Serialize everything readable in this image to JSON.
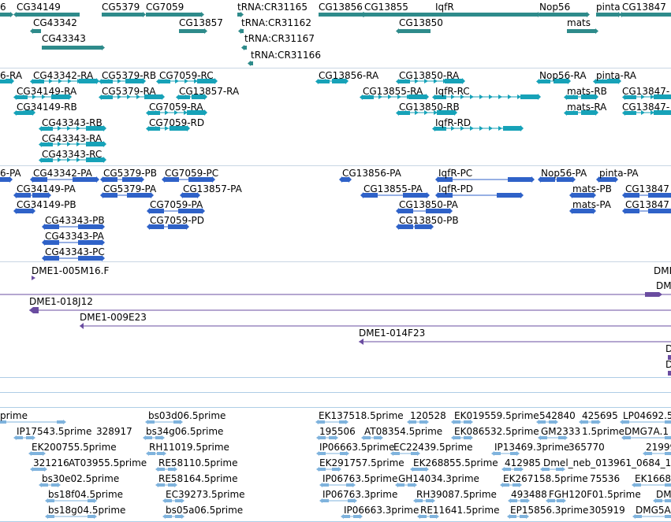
{
  "colors": {
    "gene": "#2e8b8b",
    "mrna": "#17a2b8",
    "cds": "#2f62c8",
    "clone": "#6a4ca0",
    "est": "#7fb3dd",
    "separator": "#aecde6"
  },
  "gene_track": {
    "labels": [
      "6",
      "CG34149",
      "CG5379",
      "CG7059",
      "tRNA:CR31165",
      "CG13856",
      "CG13855",
      "IqfR",
      "Nop56",
      "pinta",
      "CG13847",
      "CG43342",
      "CG13857",
      "tRNA:CR31162",
      "CG13850",
      "mats",
      "CG43343",
      "tRNA:CR31167",
      "tRNA:CR31166"
    ]
  },
  "mrna_track": {
    "labels": [
      "6-RA",
      "CG43342-RA",
      "CG5379-RB",
      "CG7059-RC",
      "CG13856-RA",
      "CG13850-RA",
      "Nop56-RA",
      "pinta-RA",
      "CG34149-RA",
      "CG5379-RA",
      "CG13857-RA",
      "CG13855-RA",
      "IqfR-RC",
      "mats-RB",
      "CG13847-",
      "CG34149-RB",
      "CG7059-RA",
      "CG13850-RB",
      "mats-RA",
      "CG13847-",
      "CG7059-RD",
      "IqfR-RD",
      "CG43343-RB",
      "CG43343-RA",
      "CG43343-RC"
    ]
  },
  "cds_track": {
    "labels": [
      "6-PA",
      "CG43342-PA",
      "CG5379-PB",
      "CG7059-PC",
      "CG13856-PA",
      "IqfR-PC",
      "Nop56-PA",
      "pinta-PA",
      "CG34149-PA",
      "CG5379-PA",
      "CG13857-PA",
      "CG13855-PA",
      "IqfR-PD",
      "mats-PB",
      "CG13847",
      "CG34149-PB",
      "CG7059-PA",
      "CG13850-PA",
      "mats-PA",
      "CG13847",
      "CG7059-PD",
      "CG13850-PB",
      "CG43343-PB",
      "CG43343-PA",
      "CG43343-PC"
    ]
  },
  "clone_track": {
    "labels": [
      "DME1-005M16.F",
      "DMI",
      "DM",
      "DME1-018J12",
      "DME1-009E23",
      "DME1-014F23",
      "D",
      "D"
    ]
  },
  "est_track": {
    "labels": [
      "prime",
      "bs03d06.5prime",
      "EK137518.5prime",
      "120528",
      "EK019559.5prime",
      "542840",
      "425695",
      "LP04692.5",
      "IP17543.5prime",
      "328917",
      "bs34g06.5prime",
      "195506",
      "AT08354.5prime",
      "EK086532.5prime",
      "GM2333",
      "1.5prime",
      "DMG7A.1",
      "EK200755.5prime",
      "RH11019.5prime",
      "IP06663.5prime",
      "EC22439.5prime",
      "IP13469.3prime",
      "365770",
      "21999",
      "321216",
      "AT03955.5prime",
      "RE58110.5prime",
      "EK291757.5prime",
      "EK268855.5prime",
      "412985",
      "Dmel_neb_013961_0684_1",
      "bs30e02.5prime",
      "RE58164.5prime",
      "IP06763.5prime",
      "GH14034.3prime",
      "EK267158.5prime",
      "75536",
      "EK1668",
      "bs18f04.5prime",
      "EC39273.5prime",
      "IP06763.3prime",
      "RH39087.5prime",
      "493488",
      "FGH120F01.5prime",
      "DM",
      "bs18g04.5prime",
      "bs05a06.5prime",
      "IP06663.3prime",
      "RE11641.5prime",
      "EP15856.3prime",
      "305919",
      "DMG5A"
    ]
  }
}
